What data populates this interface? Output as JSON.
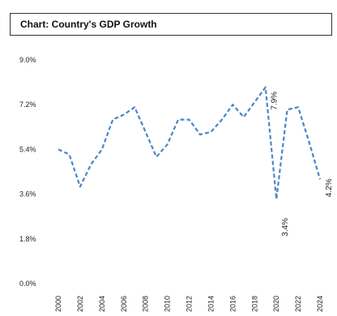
{
  "chart_data": {
    "type": "line",
    "title": "Chart: Country's GDP Growth",
    "xlabel": "",
    "ylabel": "",
    "x": [
      2000,
      2001,
      2002,
      2003,
      2004,
      2005,
      2006,
      2007,
      2008,
      2009,
      2010,
      2011,
      2012,
      2013,
      2014,
      2015,
      2016,
      2017,
      2018,
      2019,
      2020,
      2021,
      2022,
      2023,
      2024
    ],
    "x_tick_labels": [
      "2000",
      "2002",
      "2004",
      "2006",
      "2008",
      "2010",
      "2012",
      "2014",
      "2016",
      "2018",
      "2020",
      "2022",
      "2024"
    ],
    "ylim": [
      0,
      9
    ],
    "y_tick_labels": [
      "0.0%",
      "1.8%",
      "3.6%",
      "5.4%",
      "7.2%",
      "9.0%"
    ],
    "y_ticks": [
      0,
      1.8,
      3.6,
      5.4,
      7.2,
      9.0
    ],
    "series": [
      {
        "values": [
          5.4,
          5.2,
          3.9,
          4.8,
          5.4,
          6.6,
          6.8,
          7.1,
          6.1,
          5.1,
          5.6,
          6.6,
          6.6,
          6.0,
          6.1,
          6.6,
          7.2,
          6.7,
          7.3,
          7.9,
          3.4,
          7.0,
          7.1,
          5.7,
          4.2
        ],
        "color": "#4a86c8",
        "style": "dashed"
      }
    ],
    "data_labels": [
      {
        "x": 2019,
        "text": "7.9%"
      },
      {
        "x": 2020,
        "text": "3.4%"
      },
      {
        "x": 2024,
        "text": "4.2%"
      }
    ],
    "grid": false,
    "legend": "none"
  }
}
